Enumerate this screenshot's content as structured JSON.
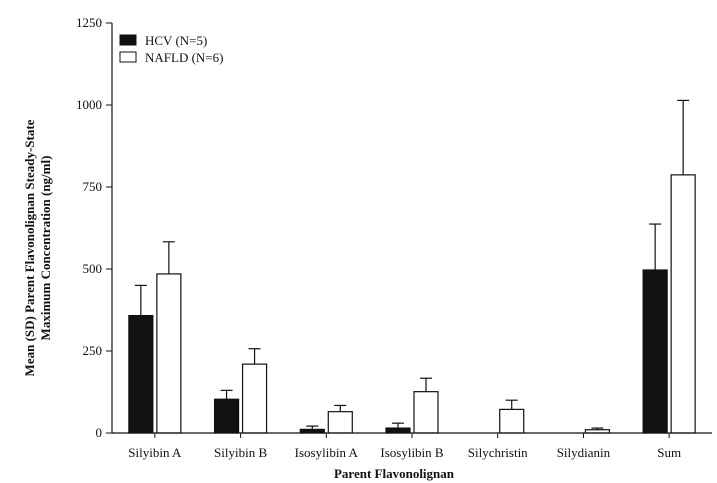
{
  "chart_data": {
    "type": "bar",
    "title": "",
    "xlabel": "Parent  Flavonolignan",
    "ylabel_lines": [
      "Mean (SD) Parent Flavonolignan Steady-State",
      "Maximum Concentration (ng/ml)"
    ],
    "ylim": [
      0,
      1250
    ],
    "yticks": [
      0,
      250,
      500,
      750,
      1000,
      1250
    ],
    "ytick_labels": [
      "0",
      "250",
      "500",
      "750",
      "1000",
      "1250"
    ],
    "categories": [
      "Silyibin A",
      "Silyibin B",
      "Isosylibin A",
      "Isosylibin B",
      "Silychristin",
      "Silydianin",
      "Sum"
    ],
    "error_bars": "SD",
    "legend_position": "top-left",
    "series": [
      {
        "name": "HCV (N=5)",
        "color": "#111111",
        "values": [
          358,
          103,
          11,
          15,
          0,
          0,
          497
        ],
        "errors": [
          92,
          27,
          10,
          15,
          0,
          0,
          140
        ]
      },
      {
        "name": "NAFLD (N=6)",
        "color": "#ffffff",
        "values": [
          485,
          210,
          65,
          126,
          72,
          10,
          787
        ],
        "errors": [
          98,
          47,
          19,
          41,
          28,
          5,
          227
        ]
      }
    ]
  }
}
